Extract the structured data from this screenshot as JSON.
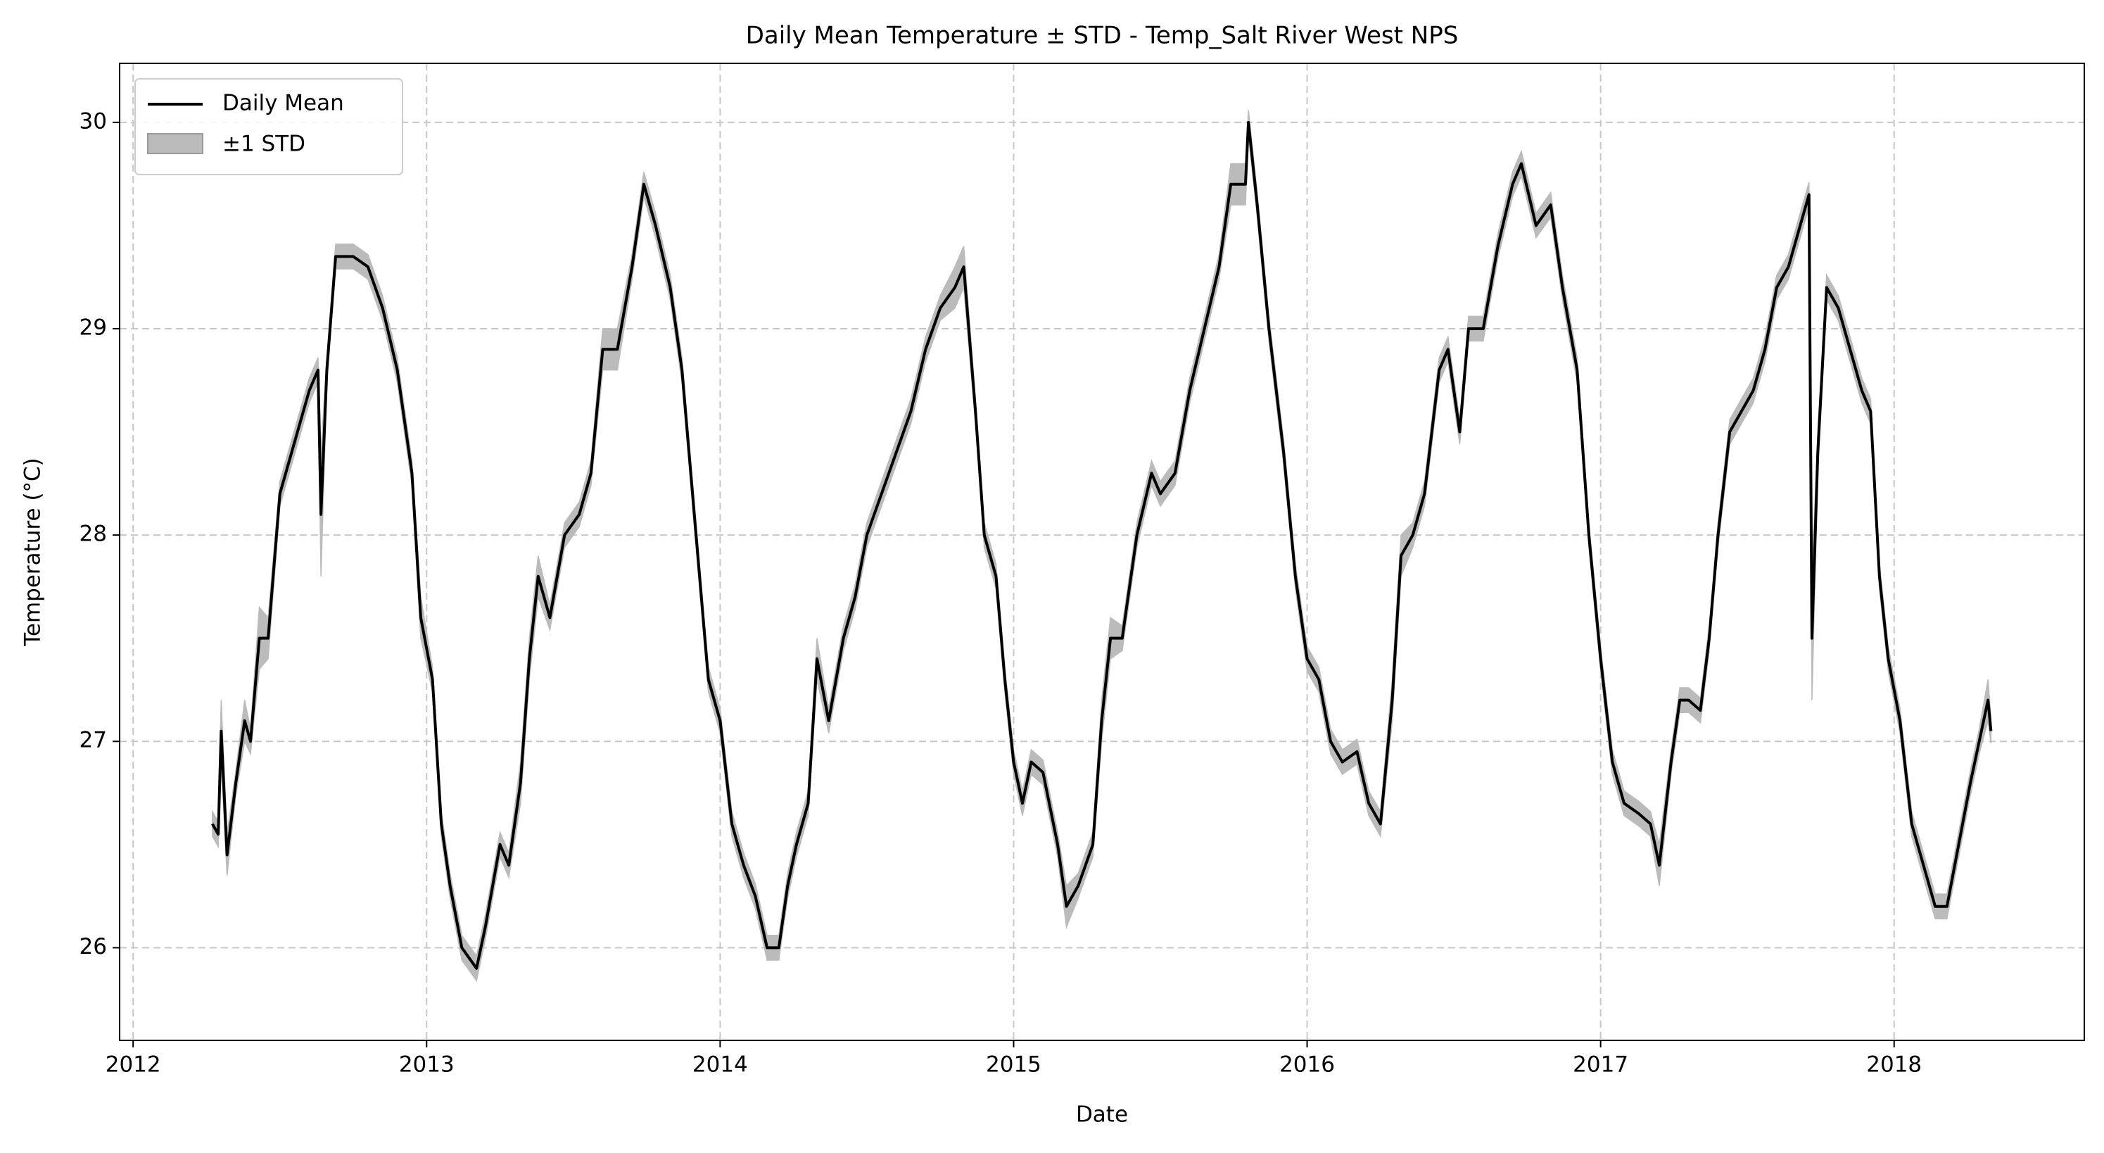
{
  "chart_data": {
    "type": "line",
    "title": "Daily Mean Temperature ± STD - Temp_Salt River West NPS",
    "x_label": "Date",
    "y_label": "Temperature (°C)",
    "x": [
      2012.27,
      2012.29,
      2012.3,
      2012.32,
      2012.35,
      2012.38,
      2012.4,
      2012.43,
      2012.46,
      2012.5,
      2012.55,
      2012.6,
      2012.63,
      2012.64,
      2012.66,
      2012.69,
      2012.75,
      2012.8,
      2012.85,
      2012.9,
      2012.95,
      2012.98,
      2013.02,
      2013.05,
      2013.08,
      2013.12,
      2013.17,
      2013.2,
      2013.25,
      2013.28,
      2013.32,
      2013.35,
      2013.38,
      2013.42,
      2013.47,
      2013.52,
      2013.56,
      2013.6,
      2013.65,
      2013.7,
      2013.74,
      2013.78,
      2013.83,
      2013.87,
      2013.9,
      2013.93,
      2013.96,
      2014.0,
      2014.04,
      2014.08,
      2014.12,
      2014.16,
      2014.2,
      2014.23,
      2014.26,
      2014.3,
      2014.33,
      2014.37,
      2014.42,
      2014.46,
      2014.5,
      2014.55,
      2014.6,
      2014.65,
      2014.7,
      2014.75,
      2014.8,
      2014.83,
      2014.87,
      2014.9,
      2014.94,
      2014.97,
      2015.0,
      2015.03,
      2015.06,
      2015.1,
      2015.15,
      2015.18,
      2015.22,
      2015.27,
      2015.3,
      2015.33,
      2015.37,
      2015.42,
      2015.47,
      2015.5,
      2015.55,
      2015.6,
      2015.65,
      2015.7,
      2015.74,
      2015.79,
      2015.8,
      2015.83,
      2015.87,
      2015.92,
      2015.96,
      2016.0,
      2016.04,
      2016.08,
      2016.12,
      2016.17,
      2016.21,
      2016.25,
      2016.29,
      2016.32,
      2016.36,
      2016.4,
      2016.45,
      2016.48,
      2016.52,
      2016.55,
      2016.6,
      2016.65,
      2016.7,
      2016.73,
      2016.78,
      2016.83,
      2016.87,
      2016.92,
      2016.96,
      2017.0,
      2017.04,
      2017.08,
      2017.13,
      2017.17,
      2017.2,
      2017.24,
      2017.27,
      2017.3,
      2017.34,
      2017.37,
      2017.4,
      2017.44,
      2017.48,
      2017.52,
      2017.56,
      2017.6,
      2017.64,
      2017.68,
      2017.71,
      2017.72,
      2017.74,
      2017.77,
      2017.81,
      2017.85,
      2017.89,
      2017.92,
      2017.95,
      2017.98,
      2018.02,
      2018.06,
      2018.1,
      2018.14,
      2018.18,
      2018.22,
      2018.26,
      2018.29,
      2018.32,
      2018.33
    ],
    "series": [
      {
        "name": "Daily Mean",
        "color": "#000000",
        "values": [
          26.6,
          26.55,
          27.05,
          26.45,
          26.8,
          27.1,
          27.0,
          27.5,
          27.5,
          28.2,
          28.45,
          28.7,
          28.8,
          28.1,
          28.8,
          29.35,
          29.35,
          29.3,
          29.1,
          28.8,
          28.3,
          27.6,
          27.3,
          26.6,
          26.3,
          26.0,
          25.9,
          26.1,
          26.5,
          26.4,
          26.8,
          27.4,
          27.8,
          27.6,
          28.0,
          28.1,
          28.3,
          28.9,
          28.9,
          29.3,
          29.7,
          29.5,
          29.2,
          28.8,
          28.3,
          27.8,
          27.3,
          27.1,
          26.6,
          26.4,
          26.25,
          26.0,
          26.0,
          26.3,
          26.5,
          26.7,
          27.4,
          27.1,
          27.5,
          27.7,
          28.0,
          28.2,
          28.4,
          28.6,
          28.9,
          29.1,
          29.2,
          29.3,
          28.6,
          28.0,
          27.8,
          27.3,
          26.9,
          26.7,
          26.9,
          26.85,
          26.5,
          26.2,
          26.3,
          26.5,
          27.1,
          27.5,
          27.5,
          28.0,
          28.3,
          28.2,
          28.3,
          28.7,
          29.0,
          29.3,
          29.7,
          29.7,
          30.0,
          29.6,
          29.0,
          28.4,
          27.8,
          27.4,
          27.3,
          27.0,
          26.9,
          26.95,
          26.7,
          26.6,
          27.2,
          27.9,
          28.0,
          28.2,
          28.8,
          28.9,
          28.5,
          29.0,
          29.0,
          29.4,
          29.7,
          29.8,
          29.5,
          29.6,
          29.2,
          28.8,
          28.0,
          27.4,
          26.9,
          26.7,
          26.65,
          26.6,
          26.4,
          26.9,
          27.2,
          27.2,
          27.15,
          27.5,
          28.0,
          28.5,
          28.6,
          28.7,
          28.9,
          29.2,
          29.3,
          29.5,
          29.65,
          27.5,
          28.4,
          29.2,
          29.1,
          28.9,
          28.7,
          28.6,
          27.8,
          27.4,
          27.1,
          26.6,
          26.4,
          26.2,
          26.2,
          26.5,
          26.8,
          27.0,
          27.2,
          27.05
        ]
      },
      {
        "name": "±1 STD",
        "color": "#bbbbbb",
        "values": [
          0.06,
          0.06,
          0.15,
          0.1,
          0.06,
          0.1,
          0.06,
          0.15,
          0.1,
          0.06,
          0.06,
          0.06,
          0.06,
          0.3,
          0.06,
          0.06,
          0.06,
          0.06,
          0.06,
          0.06,
          0.06,
          0.1,
          0.06,
          0.06,
          0.06,
          0.06,
          0.06,
          0.06,
          0.06,
          0.06,
          0.1,
          0.1,
          0.1,
          0.06,
          0.06,
          0.06,
          0.06,
          0.1,
          0.1,
          0.06,
          0.06,
          0.06,
          0.06,
          0.06,
          0.06,
          0.06,
          0.06,
          0.06,
          0.06,
          0.06,
          0.06,
          0.06,
          0.06,
          0.06,
          0.06,
          0.06,
          0.1,
          0.06,
          0.06,
          0.06,
          0.06,
          0.06,
          0.06,
          0.06,
          0.06,
          0.06,
          0.1,
          0.1,
          0.06,
          0.06,
          0.06,
          0.06,
          0.06,
          0.06,
          0.06,
          0.06,
          0.06,
          0.1,
          0.06,
          0.06,
          0.1,
          0.1,
          0.06,
          0.06,
          0.06,
          0.06,
          0.06,
          0.06,
          0.06,
          0.06,
          0.1,
          0.1,
          0.06,
          0.06,
          0.06,
          0.06,
          0.06,
          0.06,
          0.06,
          0.06,
          0.06,
          0.06,
          0.06,
          0.06,
          0.1,
          0.1,
          0.06,
          0.06,
          0.06,
          0.06,
          0.06,
          0.06,
          0.06,
          0.06,
          0.06,
          0.06,
          0.06,
          0.06,
          0.06,
          0.06,
          0.06,
          0.06,
          0.06,
          0.06,
          0.06,
          0.06,
          0.1,
          0.06,
          0.06,
          0.06,
          0.06,
          0.06,
          0.06,
          0.06,
          0.06,
          0.06,
          0.06,
          0.06,
          0.06,
          0.06,
          0.06,
          0.3,
          0.1,
          0.06,
          0.06,
          0.06,
          0.06,
          0.06,
          0.06,
          0.06,
          0.06,
          0.06,
          0.06,
          0.06,
          0.06,
          0.06,
          0.06,
          0.06,
          0.1,
          0.06
        ]
      }
    ],
    "xlim": [
      2011.954,
      2018.648
    ],
    "xticks": [
      2012,
      2013,
      2014,
      2015,
      2016,
      2017,
      2018
    ],
    "ylim": [
      25.551,
      30.286
    ],
    "yticks": [
      26,
      27,
      28,
      29,
      30
    ],
    "grid": true,
    "legend": "upper left"
  }
}
